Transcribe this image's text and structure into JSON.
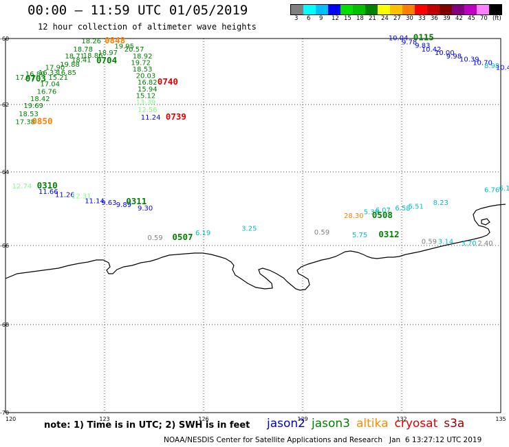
{
  "header": {
    "title": "00:00 – 11:59 UTC 01/05/2019",
    "subtitle": "12 hour collection of altimeter wave heights"
  },
  "colorbar": {
    "colors": [
      "#808080",
      "#00ffff",
      "#00c0ff",
      "#0000ff",
      "#00e000",
      "#00c000",
      "#008000",
      "#ffff00",
      "#ffc000",
      "#ff8000",
      "#ff0000",
      "#c00000",
      "#800000",
      "#800080",
      "#c000c0",
      "#ff80ff",
      "#000000"
    ],
    "labels": [
      "3",
      "6",
      "9",
      "12",
      "15",
      "18",
      "21",
      "24",
      "27",
      "30",
      "33",
      "36",
      "39",
      "42",
      "45",
      "70",
      "(ft)"
    ]
  },
  "axes": {
    "lat_labels": [
      "-60",
      "-62",
      "-64",
      "-66",
      "-68",
      "-70"
    ],
    "lon_labels": [
      "120",
      "123",
      "126",
      "129",
      "132",
      "135"
    ]
  },
  "chart_data": {
    "type": "scatter",
    "map_extent": {
      "lon": [
        120,
        135
      ],
      "lat": [
        -70,
        -60
      ]
    },
    "units": "ft",
    "points": [
      {
        "t": "18.26",
        "lon": 122.3,
        "lat": -60.15,
        "c": "#008000"
      },
      {
        "t": "18.78",
        "lon": 122.05,
        "lat": -60.4,
        "c": "#008000"
      },
      {
        "t": "18.71",
        "lon": 121.8,
        "lat": -60.6,
        "c": "#008000"
      },
      {
        "t": "18.86",
        "lon": 122.35,
        "lat": -60.58,
        "c": "#008000"
      },
      {
        "t": "18.97",
        "lon": 122.8,
        "lat": -60.5,
        "c": "#008000"
      },
      {
        "t": "19.95",
        "lon": 123.3,
        "lat": -60.3,
        "c": "#008000"
      },
      {
        "t": "18.41",
        "lon": 122.0,
        "lat": -60.72,
        "c": "#008000"
      },
      {
        "t": "19.88",
        "lon": 121.65,
        "lat": -60.85,
        "c": "#008000"
      },
      {
        "t": "17.90",
        "lon": 121.2,
        "lat": -60.95,
        "c": "#008000"
      },
      {
        "t": "16.33",
        "lon": 121.0,
        "lat": -61.1,
        "c": "#008000"
      },
      {
        "t": "16.85",
        "lon": 121.55,
        "lat": -61.1,
        "c": "#008000"
      },
      {
        "t": "16.89",
        "lon": 120.6,
        "lat": -61.15,
        "c": "#008000"
      },
      {
        "t": "17.47",
        "lon": 120.3,
        "lat": -61.25,
        "c": "#008000"
      },
      {
        "t": "15.21",
        "lon": 121.3,
        "lat": -61.25,
        "c": "#008000"
      },
      {
        "t": "17.04",
        "lon": 121.05,
        "lat": -61.45,
        "c": "#008000"
      },
      {
        "t": "16.76",
        "lon": 120.95,
        "lat": -61.68,
        "c": "#008000"
      },
      {
        "t": "18.42",
        "lon": 120.75,
        "lat": -61.9,
        "c": "#008000"
      },
      {
        "t": "19.69",
        "lon": 120.55,
        "lat": -62.1,
        "c": "#008000"
      },
      {
        "t": "18.53",
        "lon": 120.4,
        "lat": -62.35,
        "c": "#008000"
      },
      {
        "t": "17.38",
        "lon": 120.3,
        "lat": -62.58,
        "c": "#008000"
      },
      {
        "t": "20.57",
        "lon": 123.6,
        "lat": -60.4,
        "c": "#008000"
      },
      {
        "t": "18.92",
        "lon": 123.85,
        "lat": -60.6,
        "c": "#008000"
      },
      {
        "t": "19.72",
        "lon": 123.8,
        "lat": -60.8,
        "c": "#008000"
      },
      {
        "t": "18.53",
        "lon": 123.85,
        "lat": -61.0,
        "c": "#008000"
      },
      {
        "t": "20.03",
        "lon": 123.95,
        "lat": -61.2,
        "c": "#008000"
      },
      {
        "t": "16.82",
        "lon": 124.0,
        "lat": -61.4,
        "c": "#008000"
      },
      {
        "t": "15.94",
        "lon": 124.0,
        "lat": -61.6,
        "c": "#008000"
      },
      {
        "t": "15.12",
        "lon": 123.95,
        "lat": -61.8,
        "c": "#008000"
      },
      {
        "t": "13.39",
        "lon": 123.95,
        "lat": -62.0,
        "c": "#80ff80"
      },
      {
        "t": "12.56",
        "lon": 124.0,
        "lat": -62.22,
        "c": "#80ff80"
      },
      {
        "t": "11.24",
        "lon": 124.1,
        "lat": -62.45,
        "c": "#0000ff"
      },
      {
        "t": "12.74",
        "lon": 120.2,
        "lat": -64.45,
        "c": "#80ff80"
      },
      {
        "t": "11.66",
        "lon": 121.0,
        "lat": -64.6,
        "c": "#0000ff"
      },
      {
        "t": "11.26",
        "lon": 121.5,
        "lat": -64.68,
        "c": "#0000ff"
      },
      {
        "t": "12.31",
        "lon": 122.0,
        "lat": -64.72,
        "c": "#80ff80"
      },
      {
        "t": "11.14",
        "lon": 122.4,
        "lat": -64.85,
        "c": "#0000ff"
      },
      {
        "t": "9.63",
        "lon": 122.9,
        "lat": -64.9,
        "c": "#0000ff"
      },
      {
        "t": "9.89",
        "lon": 123.35,
        "lat": -64.95,
        "c": "#0000ff"
      },
      {
        "t": "9.30",
        "lon": 124.0,
        "lat": -65.05,
        "c": "#0000ff"
      },
      {
        "t": "0.59",
        "lon": 124.3,
        "lat": -65.85,
        "c": "#808080"
      },
      {
        "t": "6.19",
        "lon": 125.75,
        "lat": -65.72,
        "c": "#00c0c0"
      },
      {
        "t": "3.25",
        "lon": 127.15,
        "lat": -65.6,
        "c": "#00c0c0"
      },
      {
        "t": "0.59",
        "lon": 129.35,
        "lat": -65.7,
        "c": "#808080"
      },
      {
        "t": "28.30",
        "lon": 130.25,
        "lat": -65.25,
        "c": "#ff8000"
      },
      {
        "t": "5.38",
        "lon": 130.85,
        "lat": -65.15,
        "c": "#00c0c0"
      },
      {
        "t": "6.07",
        "lon": 131.2,
        "lat": -65.1,
        "c": "#00c0c0"
      },
      {
        "t": "6.58",
        "lon": 131.8,
        "lat": -65.05,
        "c": "#00c0c0"
      },
      {
        "t": "5.51",
        "lon": 132.2,
        "lat": -65.0,
        "c": "#00c0c0"
      },
      {
        "t": "8.23",
        "lon": 132.95,
        "lat": -64.9,
        "c": "#00c0c0"
      },
      {
        "t": "5.75",
        "lon": 130.5,
        "lat": -65.78,
        "c": "#00c0c0"
      },
      {
        "t": "0.59",
        "lon": 132.6,
        "lat": -65.95,
        "c": "#808080"
      },
      {
        "t": "3.14",
        "lon": 133.1,
        "lat": -65.95,
        "c": "#00c0c0"
      },
      {
        "t": "3.70",
        "lon": 133.8,
        "lat": -66.0,
        "c": "#00c0c0"
      },
      {
        "t": "2.40",
        "lon": 134.3,
        "lat": -66.0,
        "c": "#808080"
      },
      {
        "t": "6.76",
        "lon": 134.5,
        "lat": -64.55,
        "c": "#00c0c0"
      },
      {
        "t": "6.1",
        "lon": 134.95,
        "lat": -64.5,
        "c": "#00c0c0"
      },
      {
        "t": "10.04",
        "lon": 131.6,
        "lat": -60.05,
        "c": "#0000ff"
      },
      {
        "t": "9.78",
        "lon": 132.0,
        "lat": -60.18,
        "c": "#0000ff"
      },
      {
        "t": "9.83",
        "lon": 132.4,
        "lat": -60.28,
        "c": "#0000ff"
      },
      {
        "t": "10.42",
        "lon": 132.6,
        "lat": -60.4,
        "c": "#0000ff"
      },
      {
        "t": "10.00",
        "lon": 133.0,
        "lat": -60.5,
        "c": "#0000ff"
      },
      {
        "t": "9.98",
        "lon": 133.35,
        "lat": -60.6,
        "c": "#0000ff"
      },
      {
        "t": "10.39",
        "lon": 133.75,
        "lat": -60.7,
        "c": "#0000ff"
      },
      {
        "t": "10.70",
        "lon": 134.15,
        "lat": -60.8,
        "c": "#0000ff"
      },
      {
        "t": "8.98",
        "lon": 134.5,
        "lat": -60.9,
        "c": "#00c0c0"
      },
      {
        "t": "10.4",
        "lon": 134.85,
        "lat": -60.95,
        "c": "#0000ff"
      }
    ],
    "pass_times": [
      {
        "t": "0848",
        "lon": 123.0,
        "lat": -60.15,
        "c": "#ff8000"
      },
      {
        "t": "0704",
        "lon": 122.75,
        "lat": -60.75,
        "c": "#008000"
      },
      {
        "t": "0703",
        "lon": 120.6,
        "lat": -61.3,
        "c": "#008000"
      },
      {
        "t": "0850",
        "lon": 120.8,
        "lat": -62.58,
        "c": "#ff8000"
      },
      {
        "t": "0740",
        "lon": 124.6,
        "lat": -61.4,
        "c": "#e00000"
      },
      {
        "t": "0739",
        "lon": 124.85,
        "lat": -62.45,
        "c": "#e00000"
      },
      {
        "t": "0310",
        "lon": 120.95,
        "lat": -64.45,
        "c": "#008000"
      },
      {
        "t": "0311",
        "lon": 123.65,
        "lat": -64.88,
        "c": "#008000"
      },
      {
        "t": "0507",
        "lon": 125.05,
        "lat": -65.85,
        "c": "#008000"
      },
      {
        "t": "0508",
        "lon": 131.1,
        "lat": -65.25,
        "c": "#008000"
      },
      {
        "t": "0312",
        "lon": 131.3,
        "lat": -65.78,
        "c": "#008000"
      },
      {
        "t": "0115",
        "lon": 132.35,
        "lat": -60.05,
        "c": "#008000"
      }
    ]
  },
  "footer": {
    "note": "note: 1) Time is in UTC; 2) SWH is in feet",
    "satellites": [
      {
        "name": "jason2",
        "color": "#0000cc"
      },
      {
        "name": "jason3",
        "color": "#008000"
      },
      {
        "name": "altika",
        "color": "#ff8c00"
      },
      {
        "name": "cryosat",
        "color": "#e00000"
      },
      {
        "name": "s3a",
        "color": "#990000"
      }
    ],
    "credit": "NOAA/NESDIS Center for Satellite Applications and Research   Jan  6 13:27:12 UTC 2019"
  }
}
